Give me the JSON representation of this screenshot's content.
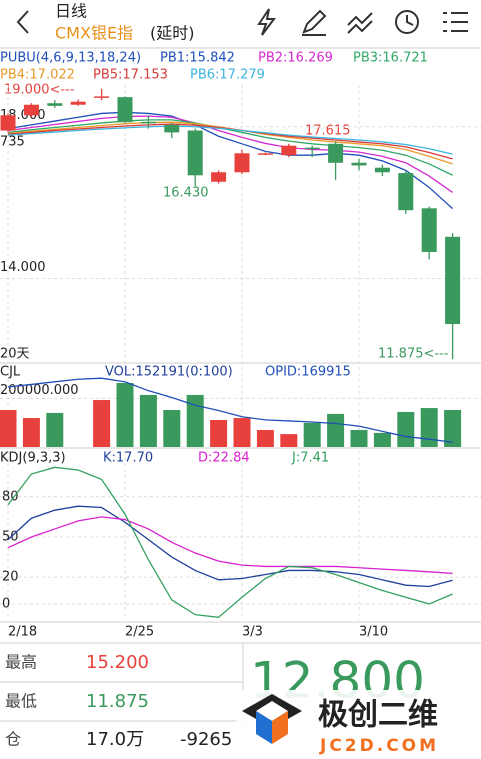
{
  "header": {
    "period": "日线",
    "symbol": "CMX银E指",
    "delay": "(延时)"
  },
  "chart_data": [
    {
      "type": "candlestick",
      "title": "PUBU(4,6,9,13,18,24)",
      "categories": [
        "2/18",
        null,
        null,
        null,
        null,
        "2/25",
        null,
        null,
        null,
        null,
        "3/3",
        null,
        null,
        null,
        null,
        "3/10",
        null,
        null,
        null,
        null
      ],
      "open": [
        17.9,
        18.3,
        18.62,
        18.58,
        18.78,
        18.78,
        18.13,
        18.05,
        17.9,
        16.55,
        16.8,
        17.28,
        17.25,
        17.45,
        17.55,
        17.05,
        16.92,
        16.78,
        15.85,
        15.1
      ],
      "high": [
        18.35,
        18.62,
        18.7,
        18.72,
        19.0,
        18.8,
        18.3,
        18.1,
        17.95,
        16.85,
        17.4,
        17.32,
        17.55,
        17.5,
        17.615,
        17.15,
        17.0,
        16.85,
        15.9,
        15.2
      ],
      "low": [
        17.85,
        18.25,
        18.5,
        18.55,
        18.7,
        18.1,
        17.95,
        17.7,
        16.43,
        16.5,
        16.75,
        17.25,
        17.2,
        17.2,
        16.6,
        16.85,
        16.7,
        15.7,
        14.5,
        11.875
      ],
      "close": [
        18.3,
        18.58,
        18.55,
        18.66,
        18.8,
        18.12,
        18.11,
        17.85,
        16.72,
        16.8,
        17.3,
        17.3,
        17.5,
        17.44,
        17.05,
        16.98,
        16.8,
        15.8,
        14.7,
        12.8
      ],
      "up_color": "#e8413d",
      "down_color": "#3a9a5d",
      "series": [
        {
          "label": "PB1:15.842",
          "color": "#1f4fb8",
          "values": [
            17.95,
            18.05,
            18.15,
            18.25,
            18.35,
            18.38,
            18.35,
            18.28,
            18.05,
            17.75,
            17.55,
            17.35,
            17.25,
            17.25,
            17.3,
            17.25,
            17.1,
            16.85,
            16.4,
            15.842
          ]
        },
        {
          "label": "PB2:16.269",
          "color": "#d42ad0",
          "values": [
            17.9,
            17.98,
            18.06,
            18.14,
            18.22,
            18.27,
            18.28,
            18.25,
            18.1,
            17.9,
            17.72,
            17.56,
            17.45,
            17.4,
            17.38,
            17.33,
            17.22,
            17.05,
            16.7,
            16.269
          ]
        },
        {
          "label": "PB3:16.721",
          "color": "#2fa866",
          "values": [
            17.85,
            17.92,
            17.98,
            18.04,
            18.1,
            18.15,
            18.18,
            18.18,
            18.1,
            17.98,
            17.85,
            17.72,
            17.62,
            17.55,
            17.5,
            17.45,
            17.38,
            17.25,
            17.02,
            16.721
          ]
        },
        {
          "label": "PB4:17.022",
          "color": "#e89a2a",
          "values": [
            17.82,
            17.88,
            17.93,
            17.98,
            18.03,
            18.08,
            18.11,
            18.12,
            18.08,
            18.0,
            17.9,
            17.8,
            17.72,
            17.65,
            17.6,
            17.55,
            17.5,
            17.4,
            17.22,
            17.022
          ]
        },
        {
          "label": "PB5:17.153",
          "color": "#d83a3a",
          "values": [
            17.8,
            17.85,
            17.9,
            17.94,
            17.98,
            18.02,
            18.05,
            18.07,
            18.04,
            17.98,
            17.9,
            17.82,
            17.75,
            17.7,
            17.65,
            17.6,
            17.55,
            17.47,
            17.32,
            17.153
          ]
        },
        {
          "label": "PB6:17.279",
          "color": "#3cb4e0",
          "values": [
            17.78,
            17.82,
            17.86,
            17.9,
            17.94,
            17.97,
            18.0,
            18.02,
            18.0,
            17.96,
            17.9,
            17.84,
            17.78,
            17.73,
            17.69,
            17.65,
            17.6,
            17.53,
            17.42,
            17.279
          ]
        }
      ],
      "ylim": [
        11.8,
        19.1
      ],
      "yticks": [
        {
          "value": 18,
          "label": "18.000"
        },
        {
          "value": 14,
          "label": "14.000"
        }
      ],
      "annotations": [
        "19.000<---",
        "735",
        "17.615",
        "16.430",
        "11.875<---",
        "20天"
      ],
      "grid": true
    },
    {
      "type": "bar",
      "title": "CJL",
      "subtitle": "VOL:152191(0:100)",
      "values": [
        152000,
        119000,
        140000,
        0,
        193000,
        263000,
        214000,
        152000,
        214000,
        111000,
        119000,
        70000,
        53000,
        99000,
        136000,
        70000,
        58000,
        144000,
        160000,
        152191
      ],
      "ylim": [
        0,
        300000
      ],
      "yticks": [
        {
          "value": 200000,
          "label": "200000.000"
        }
      ],
      "series": [
        {
          "label": "OPID:169915",
          "color": "#1f4fb8",
          "axis": "y2",
          "values": [
            180500,
            181000,
            181500,
            182000,
            182200,
            181500,
            179800,
            178500,
            177000,
            176000,
            174800,
            174200,
            174000,
            173800,
            173500,
            173000,
            172000,
            171000,
            170500,
            169915
          ]
        }
      ],
      "y2lim": [
        169000,
        183000
      ],
      "grid": true
    },
    {
      "type": "line",
      "title": "KDJ(9,3,3)",
      "series": [
        {
          "label": "K:17.70",
          "color": "#1f3f9a",
          "values": [
            48,
            64,
            70,
            73,
            72,
            61,
            48,
            35,
            25,
            18,
            19,
            22,
            25,
            25,
            24,
            22,
            18,
            14,
            13,
            17.7
          ]
        },
        {
          "label": "D:22.84",
          "color": "#d81fd0",
          "values": [
            42,
            50,
            56,
            62,
            65,
            63,
            56,
            46,
            38,
            32,
            29,
            28,
            28,
            28,
            28,
            27,
            26,
            25,
            24,
            22.84
          ]
        },
        {
          "label": "J:7.41",
          "color": "#34a060",
          "values": [
            74,
            97,
            102,
            100,
            93,
            67,
            33,
            3,
            -8,
            -10,
            5,
            19,
            28,
            27,
            22,
            16,
            10,
            5,
            0,
            7.41
          ]
        }
      ],
      "ylim": [
        -12,
        103
      ],
      "yticks": [
        80,
        50,
        20,
        0
      ],
      "grid": true
    }
  ],
  "quote": {
    "rows": [
      {
        "label": "最高",
        "value": "15.200"
      },
      {
        "label": "最低",
        "value": "11.875"
      },
      {
        "label": "仓",
        "value": "17.0万",
        "change": "-9265"
      }
    ],
    "last": "12.800"
  },
  "watermark": {
    "name": "极创二维",
    "site": "JC2D.COM"
  }
}
